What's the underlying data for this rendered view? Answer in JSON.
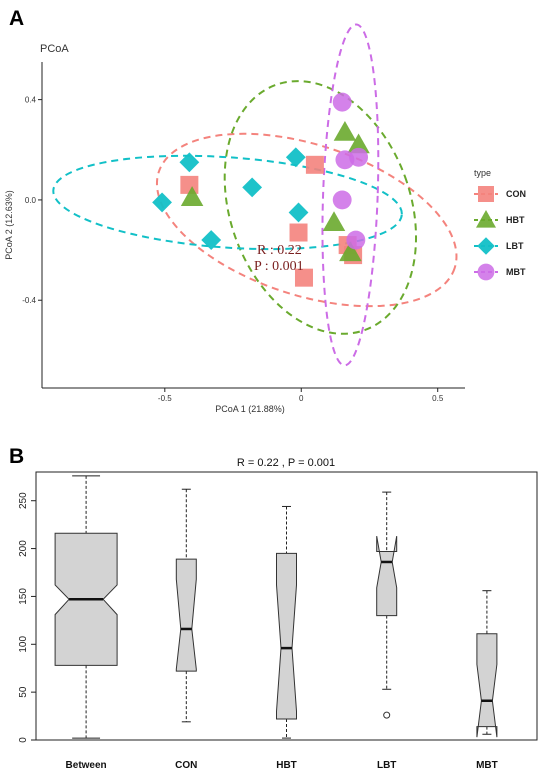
{
  "chart_data": [
    {
      "panel": "A",
      "type": "scatter",
      "title": "PCoA",
      "xlabel": "PCoA 1 (21.88%)",
      "ylabel": "PCoA 2 (12.63%)",
      "xlim": [
        -0.95,
        0.6
      ],
      "ylim": [
        -0.75,
        0.55
      ],
      "xticks": [
        -0.5,
        0.0,
        0.5
      ],
      "xtick_labels": [
        "-0.5",
        "0",
        "0.5"
      ],
      "yticks": [
        -0.4,
        0.0,
        0.4
      ],
      "ytick_labels": [
        "-0.4",
        "0.0",
        "0.4"
      ],
      "annotation_r": "R : 0.22",
      "annotation_p": "P : 0.001",
      "legend_title": "type",
      "legend_position": "right",
      "series": [
        {
          "name": "CON",
          "marker": "square",
          "color": "#f4837d",
          "points": [
            [
              -0.41,
              0.06
            ],
            [
              0.05,
              0.14
            ],
            [
              -0.01,
              -0.13
            ],
            [
              0.01,
              -0.31
            ],
            [
              0.17,
              -0.18
            ],
            [
              0.19,
              -0.22
            ]
          ],
          "ellipse": {
            "center": [
              0.02,
              -0.08
            ],
            "rx": 0.57,
            "ry": 0.3,
            "angle": 18
          }
        },
        {
          "name": "HBT",
          "marker": "triangle",
          "color": "#6aaa2e",
          "points": [
            [
              -0.4,
              0.01
            ],
            [
              0.16,
              0.27
            ],
            [
              0.21,
              0.22
            ],
            [
              0.12,
              -0.09
            ],
            [
              0.18,
              -0.21
            ]
          ],
          "ellipse": {
            "center": [
              0.07,
              -0.03
            ],
            "rx": 0.33,
            "ry": 0.52,
            "angle": -20
          }
        },
        {
          "name": "LBT",
          "marker": "diamond",
          "color": "#12c0c7",
          "points": [
            [
              -0.41,
              0.15
            ],
            [
              -0.51,
              -0.01
            ],
            [
              -0.18,
              0.05
            ],
            [
              -0.33,
              -0.16
            ],
            [
              -0.02,
              0.17
            ],
            [
              -0.01,
              -0.05
            ]
          ],
          "ellipse": {
            "center": [
              -0.27,
              -0.01
            ],
            "rx": 0.64,
            "ry": 0.18,
            "angle": 4
          }
        },
        {
          "name": "MBT",
          "marker": "circle",
          "color": "#cc6ce6",
          "points": [
            [
              0.15,
              0.39
            ],
            [
              0.21,
              0.17
            ],
            [
              0.16,
              0.16
            ],
            [
              0.15,
              0.0
            ],
            [
              0.2,
              -0.16
            ]
          ],
          "ellipse": {
            "center": [
              0.18,
              0.02
            ],
            "rx": 0.1,
            "ry": 0.68,
            "angle": 2
          }
        }
      ]
    },
    {
      "panel": "B",
      "type": "boxplot",
      "title": "R =  0.22 ,  P =  0.001",
      "ylim": [
        0,
        280
      ],
      "yticks": [
        0,
        50,
        100,
        150,
        200,
        250
      ],
      "ytick_labels": [
        "0",
        "50",
        "100",
        "150",
        "200",
        "250"
      ],
      "categories": [
        "Between",
        "CON",
        "HBT",
        "LBT",
        "MBT"
      ],
      "boxes": [
        {
          "name": "Between",
          "whisker_low": 2,
          "q1": 78,
          "median": 147,
          "q3": 216,
          "whisker_high": 276,
          "notch_low": 131,
          "notch_high": 162,
          "outliers": []
        },
        {
          "name": "CON",
          "whisker_low": 19,
          "q1": 72,
          "median": 116,
          "q3": 189,
          "whisker_high": 262,
          "notch_low": 74,
          "notch_high": 168,
          "outliers": []
        },
        {
          "name": "HBT",
          "whisker_low": 2,
          "q1": 22,
          "median": 96,
          "q3": 195,
          "whisker_high": 244,
          "notch_low": 30,
          "notch_high": 162,
          "outliers": []
        },
        {
          "name": "LBT",
          "whisker_low": 53,
          "q1": 130,
          "median": 186,
          "q3": 197,
          "whisker_high": 259,
          "notch_low": 159,
          "notch_high": 213,
          "outliers": [
            26
          ]
        },
        {
          "name": "MBT",
          "whisker_low": 6,
          "q1": 14,
          "median": 41,
          "q3": 111,
          "whisker_high": 156,
          "notch_low": 3,
          "notch_high": 79,
          "outliers": []
        }
      ],
      "fill_color": "#d3d3d3"
    }
  ],
  "panel_labels": {
    "a": "A",
    "b": "B"
  }
}
